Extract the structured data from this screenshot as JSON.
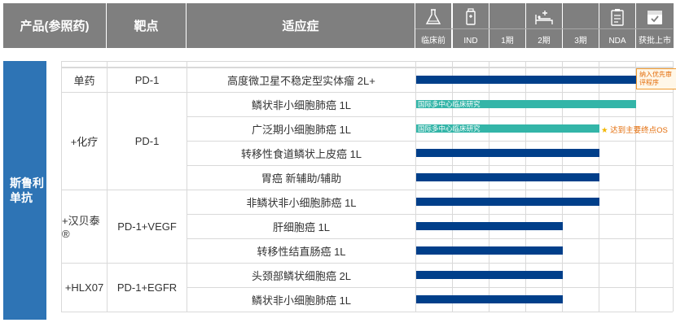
{
  "header": {
    "product_label": "产品(参照药)",
    "target_label": "靶点",
    "indication_label": "适应症",
    "stages": [
      {
        "label": "临床前",
        "icon": "flask-icon"
      },
      {
        "label": "IND",
        "icon": "lab-bottle-icon"
      },
      {
        "label": "1期",
        "icon": ""
      },
      {
        "label": "2期",
        "icon": "hospital-bed-icon"
      },
      {
        "label": "3期",
        "icon": ""
      },
      {
        "label": "NDA",
        "icon": "clipboard-icon"
      },
      {
        "label": "获批上市",
        "icon": "approved-box-icon"
      }
    ]
  },
  "drug_name": "斯鲁利\n单抗",
  "groups": [
    {
      "combo": "单药",
      "target": "PD-1"
    },
    {
      "combo": "+化疗",
      "target": "PD-1"
    },
    {
      "combo": "+汉贝泰®",
      "target": "PD-1+VEGF"
    },
    {
      "combo": "+HLX07",
      "target": "PD-1+EGFR"
    }
  ],
  "colors": {
    "header_bg": "#7f7f7f",
    "drug_bar": "#2e74b5",
    "bar_navy": "#003f8a",
    "bar_teal": "#33b5a8",
    "accent_orange": "#e36c09"
  },
  "chart_data": {
    "type": "bar",
    "orientation": "horizontal",
    "x_stages": [
      "临床前",
      "IND",
      "1期",
      "2期",
      "3期",
      "NDA",
      "获批上市"
    ],
    "rows": [
      {
        "indication": "高度微卫星不稳定型实体瘤 2L+",
        "group": 0,
        "stage_reached": "NDA",
        "progress_stages": 6.0,
        "color": "#003f8a",
        "bar_label": "",
        "note": "纳入优先审评程序"
      },
      {
        "indication": "鳞状非小细胞肺癌 1L",
        "group": 1,
        "stage_reached": "NDA",
        "progress_stages": 6.0,
        "color": "#33b5a8",
        "bar_label": "国际多中心临床研究",
        "note": ""
      },
      {
        "indication": "广泛期小细胞肺癌 1L",
        "group": 1,
        "stage_reached": "3期",
        "progress_stages": 5.0,
        "color": "#33b5a8",
        "bar_label": "国际多中心临床研究",
        "note": "达到主要终点OS"
      },
      {
        "indication": "转移性食道鳞状上皮癌 1L",
        "group": 1,
        "stage_reached": "3期",
        "progress_stages": 5.0,
        "color": "#003f8a",
        "bar_label": "",
        "note": ""
      },
      {
        "indication": "胃癌 新辅助/辅助",
        "group": 1,
        "stage_reached": "3期",
        "progress_stages": 5.0,
        "color": "#003f8a",
        "bar_label": "",
        "note": ""
      },
      {
        "indication": "非鳞状非小细胞肺癌 1L",
        "group": 2,
        "stage_reached": "3期",
        "progress_stages": 5.0,
        "color": "#003f8a",
        "bar_label": "",
        "note": ""
      },
      {
        "indication": "肝细胞癌 1L",
        "group": 2,
        "stage_reached": "2期",
        "progress_stages": 4.0,
        "color": "#003f8a",
        "bar_label": "",
        "note": ""
      },
      {
        "indication": "转移性结直肠癌 1L",
        "group": 2,
        "stage_reached": "2期",
        "progress_stages": 4.0,
        "color": "#003f8a",
        "bar_label": "",
        "note": ""
      },
      {
        "indication": "头颈部鳞状细胞癌 2L",
        "group": 3,
        "stage_reached": "2期",
        "progress_stages": 4.0,
        "color": "#003f8a",
        "bar_label": "",
        "note": ""
      },
      {
        "indication": "鳞状非小细胞肺癌 1L",
        "group": 3,
        "stage_reached": "2期",
        "progress_stages": 4.0,
        "color": "#003f8a",
        "bar_label": "",
        "note": ""
      }
    ]
  }
}
